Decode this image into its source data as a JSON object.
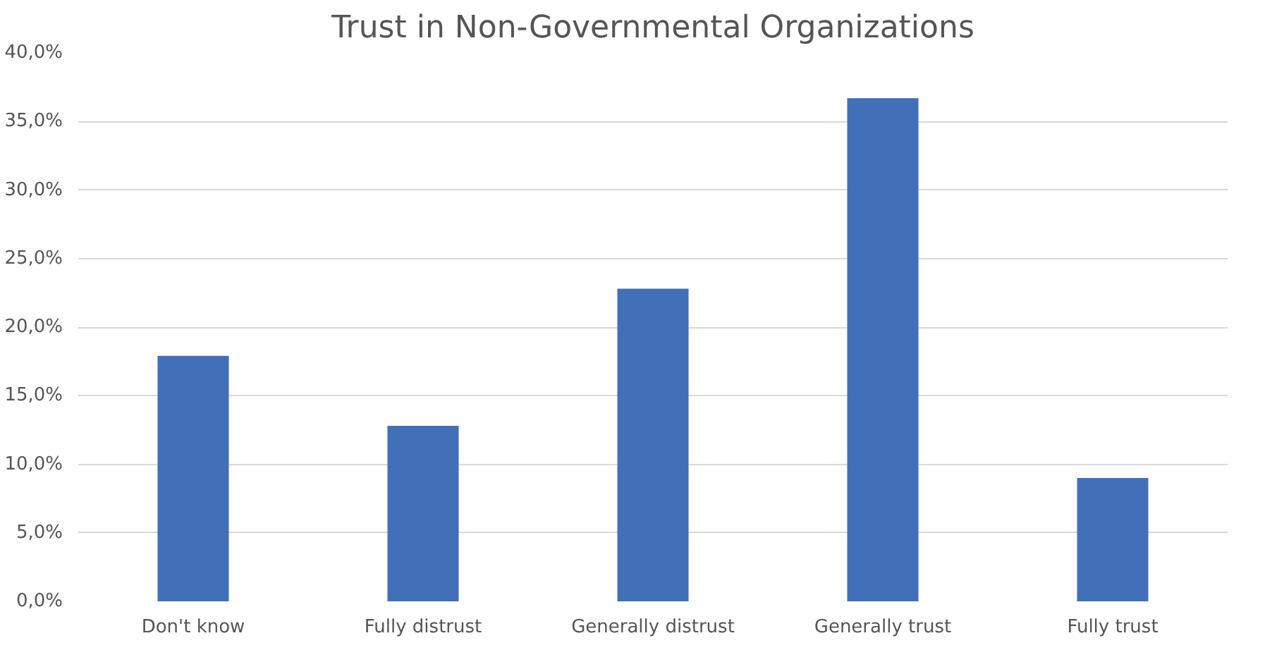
{
  "chart_data": {
    "type": "bar",
    "title": "Trust in Non-Governmental Organizations",
    "categories": [
      "Don't know",
      "Fully distrust",
      "Generally distrust",
      "Generally trust",
      "Fully trust"
    ],
    "values": [
      17.9,
      12.8,
      22.8,
      36.7,
      9.0
    ],
    "color": "#4170b8",
    "ylim": [
      0,
      40
    ],
    "yticks": [
      {
        "value": 0,
        "label": "0,0%"
      },
      {
        "value": 5,
        "label": "5,0%"
      },
      {
        "value": 10,
        "label": "10,0%"
      },
      {
        "value": 15,
        "label": "15,0%"
      },
      {
        "value": 20,
        "label": "20,0%"
      },
      {
        "value": 25,
        "label": "25,0%"
      },
      {
        "value": 30,
        "label": "30,0%"
      },
      {
        "value": 35,
        "label": "35,0%"
      },
      {
        "value": 40,
        "label": "40,0%"
      }
    ],
    "grid": "y"
  }
}
